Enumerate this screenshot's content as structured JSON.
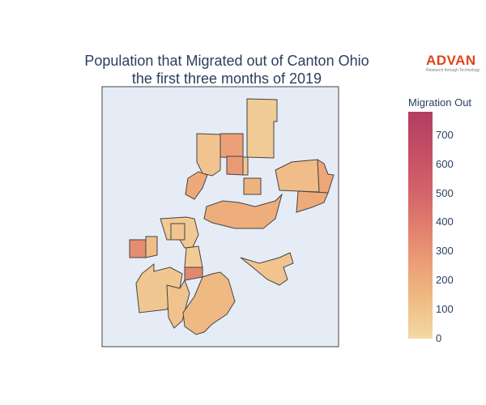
{
  "title_line1": "Population that Migrated out of Canton Ohio",
  "title_line2": "the first three months of 2019",
  "logo": {
    "word": "ADVAN",
    "tagline": "Research through Technology"
  },
  "colorbar": {
    "title": "Migration Out",
    "ticks": [
      "0",
      "100",
      "200",
      "300",
      "400",
      "500",
      "600",
      "700"
    ],
    "max": 780,
    "colors": {
      "low": "#f3d9a4",
      "mid": "#e07e6e",
      "high": "#b23d62"
    }
  },
  "map": {
    "background": "#e5ecf6",
    "border": "#444444"
  },
  "regions": [
    {
      "id": "r1",
      "value": 60
    },
    {
      "id": "r2",
      "value": 90
    },
    {
      "id": "r3",
      "value": 250
    },
    {
      "id": "r4",
      "value": 280
    },
    {
      "id": "r5",
      "value": 80
    },
    {
      "id": "r6",
      "value": 170
    },
    {
      "id": "r7",
      "value": 210
    },
    {
      "id": "r8",
      "value": 120
    },
    {
      "id": "r9",
      "value": 220
    },
    {
      "id": "r10",
      "value": 200
    },
    {
      "id": "r11",
      "value": 190
    },
    {
      "id": "r12",
      "value": 70
    },
    {
      "id": "r13",
      "value": 90
    },
    {
      "id": "r14",
      "value": 330
    },
    {
      "id": "r15",
      "value": 120
    },
    {
      "id": "r16",
      "value": 350
    },
    {
      "id": "r17",
      "value": 60
    },
    {
      "id": "r18",
      "value": 80
    },
    {
      "id": "r19",
      "value": 100
    },
    {
      "id": "r20",
      "value": 140
    },
    {
      "id": "r21",
      "value": 90
    }
  ]
}
